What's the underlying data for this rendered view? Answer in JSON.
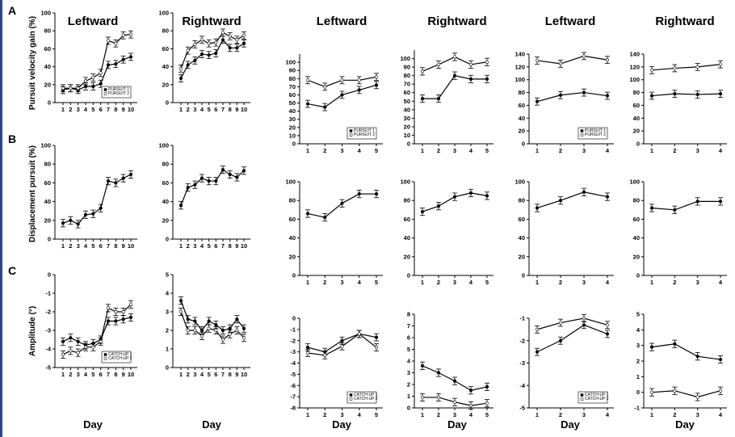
{
  "row_labels": [
    "A",
    "B",
    "C"
  ],
  "y_labels": [
    "Pursuit velocity gain (%)",
    "Displacement pursuit (%)",
    "Amplitude (°)"
  ],
  "x_label": "Day",
  "colors": {
    "series1_marker": "#000000",
    "series2_marker": "#ffffff",
    "line": "#000000"
  },
  "chart_data": [
    {
      "id": "A1",
      "type": "line",
      "title": "Leftward",
      "categories": [
        "1",
        "2",
        "3",
        "4",
        "5",
        "6",
        "7",
        "8",
        "9",
        "10"
      ],
      "ylim": [
        0,
        100
      ],
      "yticks": [
        0,
        20,
        40,
        60,
        80,
        100
      ],
      "legend": [
        "PURSUIT 1",
        "PURSUIT 2"
      ],
      "legend_position": "bottom-right",
      "series": [
        {
          "name": "PURSUIT 1",
          "values": [
            14,
            16,
            14,
            18,
            18,
            21,
            42,
            43,
            48,
            51
          ]
        },
        {
          "name": "PURSUIT 2",
          "values": [
            16,
            16,
            16,
            24,
            28,
            33,
            69,
            66,
            75,
            76
          ]
        }
      ]
    },
    {
      "id": "A2",
      "type": "line",
      "title": "Rightward",
      "categories": [
        "1",
        "2",
        "3",
        "4",
        "5",
        "6",
        "7",
        "8",
        "9",
        "10"
      ],
      "ylim": [
        0,
        100
      ],
      "yticks": [
        0,
        20,
        40,
        60,
        80,
        100
      ],
      "series": [
        {
          "values": [
            27,
            42,
            47,
            54,
            53,
            55,
            70,
            61,
            61,
            66
          ]
        },
        {
          "values": [
            38,
            58,
            65,
            70,
            66,
            67,
            78,
            74,
            70,
            75
          ]
        }
      ]
    },
    {
      "id": "A3",
      "type": "line",
      "title": "Leftward",
      "categories": [
        "1",
        "2",
        "3",
        "4",
        "5"
      ],
      "ylim": [
        0,
        110
      ],
      "yticks": [
        0,
        10,
        20,
        30,
        40,
        50,
        60,
        70,
        80,
        90,
        100
      ],
      "legend": [
        "PURSUIT 1",
        "PURSUIT 2"
      ],
      "legend_position": "bottom-right",
      "series": [
        {
          "values": [
            49,
            45,
            60,
            66,
            72
          ]
        },
        {
          "values": [
            78,
            70,
            78,
            78,
            82
          ]
        }
      ]
    },
    {
      "id": "A4",
      "type": "line",
      "title": "Rightward",
      "categories": [
        "1",
        "2",
        "3",
        "4",
        "5"
      ],
      "ylim": [
        0,
        110
      ],
      "yticks": [
        0,
        10,
        20,
        30,
        40,
        50,
        60,
        70,
        80,
        90,
        100
      ],
      "series": [
        {
          "values": [
            53,
            53,
            80,
            76,
            76
          ]
        },
        {
          "values": [
            85,
            93,
            102,
            93,
            96
          ]
        }
      ]
    },
    {
      "id": "A5",
      "type": "line",
      "title": "Leftward",
      "categories": [
        "1",
        "2",
        "3",
        "4"
      ],
      "ylim": [
        0,
        140
      ],
      "yticks": [
        0,
        20,
        40,
        60,
        80,
        100,
        120,
        140
      ],
      "legend": [
        "PURSUIT 1",
        "PURSUIT 2"
      ],
      "legend_position": "bottom-right",
      "series": [
        {
          "values": [
            66,
            76,
            80,
            75
          ]
        },
        {
          "values": [
            130,
            125,
            137,
            131
          ]
        }
      ]
    },
    {
      "id": "A6",
      "type": "line",
      "title": "Rightward",
      "categories": [
        "1",
        "2",
        "3",
        "4"
      ],
      "ylim": [
        0,
        140
      ],
      "yticks": [
        0,
        20,
        40,
        60,
        80,
        100,
        120,
        140
      ],
      "series": [
        {
          "values": [
            75,
            78,
            77,
            78
          ]
        },
        {
          "values": [
            115,
            118,
            120,
            124
          ]
        }
      ]
    },
    {
      "id": "B1",
      "type": "line",
      "categories": [
        "1",
        "2",
        "3",
        "4",
        "5",
        "6",
        "7",
        "8",
        "9",
        "10"
      ],
      "ylim": [
        0,
        100
      ],
      "yticks": [
        0,
        20,
        40,
        60,
        80,
        100
      ],
      "series": [
        {
          "values": [
            17,
            20,
            16,
            26,
            27,
            33,
            62,
            60,
            65,
            69
          ]
        }
      ]
    },
    {
      "id": "B2",
      "type": "line",
      "categories": [
        "1",
        "2",
        "3",
        "4",
        "5",
        "6",
        "7",
        "8",
        "9",
        "10"
      ],
      "ylim": [
        0,
        100
      ],
      "yticks": [
        0,
        20,
        40,
        60,
        80,
        100
      ],
      "series": [
        {
          "values": [
            36,
            55,
            58,
            65,
            62,
            62,
            74,
            69,
            66,
            73
          ]
        }
      ]
    },
    {
      "id": "B3",
      "type": "line",
      "categories": [
        "1",
        "2",
        "3",
        "4",
        "5"
      ],
      "ylim": [
        0,
        100
      ],
      "yticks": [
        0,
        20,
        40,
        60,
        80,
        100
      ],
      "series": [
        {
          "values": [
            66,
            62,
            77,
            87,
            87
          ]
        }
      ]
    },
    {
      "id": "B4",
      "type": "line",
      "categories": [
        "1",
        "2",
        "3",
        "4",
        "5"
      ],
      "ylim": [
        0,
        100
      ],
      "yticks": [
        0,
        20,
        40,
        60,
        80,
        100
      ],
      "series": [
        {
          "values": [
            68,
            74,
            84,
            88,
            85
          ]
        }
      ]
    },
    {
      "id": "B5",
      "type": "line",
      "categories": [
        "1",
        "2",
        "3",
        "4"
      ],
      "ylim": [
        0,
        100
      ],
      "yticks": [
        0,
        20,
        40,
        60,
        80,
        100
      ],
      "series": [
        {
          "values": [
            72,
            80,
            89,
            84
          ]
        }
      ]
    },
    {
      "id": "B6",
      "type": "line",
      "categories": [
        "1",
        "2",
        "3",
        "4"
      ],
      "ylim": [
        0,
        100
      ],
      "yticks": [
        0,
        20,
        40,
        60,
        80,
        100
      ],
      "series": [
        {
          "values": [
            72,
            70,
            79,
            79
          ]
        }
      ]
    },
    {
      "id": "C1",
      "type": "line",
      "categories": [
        "1",
        "2",
        "3",
        "4",
        "5",
        "6",
        "7",
        "8",
        "9",
        "10"
      ],
      "ylim": [
        -5,
        0
      ],
      "yticks": [
        -5,
        -4,
        -3,
        -2,
        -1,
        0
      ],
      "legend": [
        "CATCH-UP 1",
        "CATCH-UP 2"
      ],
      "legend_position": "bottom-right",
      "series": [
        {
          "name": "CATCH-UP 1",
          "values": [
            -3.6,
            -3.4,
            -3.6,
            -3.8,
            -3.7,
            -3.5,
            -2.5,
            -2.5,
            -2.4,
            -2.3
          ]
        },
        {
          "name": "CATCH-UP 2",
          "values": [
            -4.3,
            -4.1,
            -4.2,
            -3.9,
            -3.9,
            -3.6,
            -1.8,
            -2.0,
            -2.0,
            -1.6
          ]
        }
      ]
    },
    {
      "id": "C2",
      "type": "line",
      "categories": [
        "1",
        "2",
        "3",
        "4",
        "5",
        "6",
        "7",
        "8",
        "9",
        "10"
      ],
      "ylim": [
        0,
        5
      ],
      "yticks": [
        0,
        1,
        2,
        3,
        4,
        5
      ],
      "series": [
        {
          "values": [
            3.6,
            2.6,
            2.5,
            2.0,
            2.5,
            2.3,
            2.0,
            2.1,
            2.6,
            2.1
          ]
        },
        {
          "values": [
            3.0,
            2.0,
            2.0,
            1.7,
            2.1,
            2.0,
            1.5,
            1.8,
            2.0,
            1.6
          ]
        }
      ]
    },
    {
      "id": "C3",
      "type": "line",
      "categories": [
        "1",
        "2",
        "3",
        "4",
        "5"
      ],
      "ylim": [
        -8,
        0
      ],
      "yticks": [
        -8,
        -7,
        -6,
        -5,
        -4,
        -3,
        -2,
        -1,
        0
      ],
      "legend": [
        "CATCH-UP 1",
        "CATCH-UP 2"
      ],
      "legend_position": "bottom-right",
      "series": [
        {
          "values": [
            -2.6,
            -3.0,
            -2.0,
            -1.4,
            -1.7
          ]
        },
        {
          "values": [
            -3.1,
            -3.3,
            -2.5,
            -1.4,
            -2.6
          ]
        }
      ]
    },
    {
      "id": "C4",
      "type": "line",
      "categories": [
        "1",
        "2",
        "3",
        "4",
        "5"
      ],
      "ylim": [
        0,
        8
      ],
      "yticks": [
        0,
        1,
        2,
        3,
        4,
        5,
        6,
        7,
        8
      ],
      "series": [
        {
          "values": [
            3.6,
            3.0,
            2.3,
            1.5,
            1.8
          ]
        },
        {
          "values": [
            0.9,
            0.9,
            0.5,
            0.2,
            0.4
          ]
        }
      ]
    },
    {
      "id": "C5",
      "type": "line",
      "categories": [
        "1",
        "2",
        "3",
        "4"
      ],
      "ylim": [
        -5,
        -1
      ],
      "yticks": [
        -5,
        -4,
        -3,
        -2,
        -1
      ],
      "legend": [
        "CATCH-UP 1",
        "CATCH-UP 2"
      ],
      "legend_position": "bottom-right",
      "series": [
        {
          "values": [
            -2.5,
            -2.0,
            -1.3,
            -1.7
          ]
        },
        {
          "values": [
            -1.5,
            -1.2,
            -1.0,
            -1.3
          ]
        }
      ]
    },
    {
      "id": "C6",
      "type": "line",
      "categories": [
        "1",
        "2",
        "3",
        "4"
      ],
      "ylim": [
        -1,
        5
      ],
      "yticks": [
        -1,
        0,
        1,
        2,
        3,
        4,
        5
      ],
      "series": [
        {
          "values": [
            2.9,
            3.1,
            2.3,
            2.1
          ]
        },
        {
          "values": [
            0.0,
            0.1,
            -0.3,
            0.1
          ]
        }
      ]
    }
  ]
}
